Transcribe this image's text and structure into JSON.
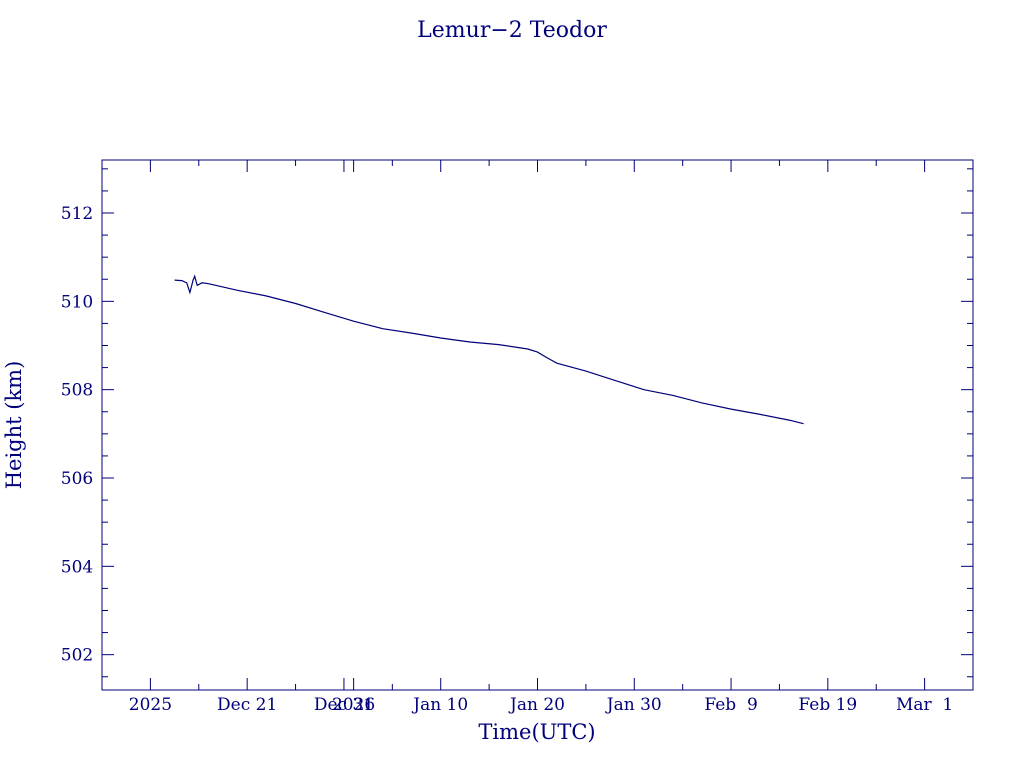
{
  "chart_data": {
    "type": "line",
    "title": "Lemur−2 Teodor",
    "xlabel": "Time(UTC)",
    "ylabel": "Height (km)",
    "x_domain": [
      "2025-12-06T00:00",
      "2026-03-06T00:00"
    ],
    "ylim": [
      501.2,
      513.2
    ],
    "x_ticks": [
      {
        "date": "2025-12-11",
        "label": "2025"
      },
      {
        "date": "2025-12-21",
        "label": "Dec 21"
      },
      {
        "date": "2025-12-31",
        "label": "Dec 31"
      },
      {
        "date": "2026-01-01",
        "label": "2026"
      },
      {
        "date": "2026-01-10",
        "label": "Jan 10"
      },
      {
        "date": "2026-01-20",
        "label": "Jan 20"
      },
      {
        "date": "2026-01-30",
        "label": "Jan 30"
      },
      {
        "date": "2026-02-09",
        "label": "Feb  9"
      },
      {
        "date": "2026-02-19",
        "label": "Feb 19"
      },
      {
        "date": "2026-03-01",
        "label": "Mar  1"
      }
    ],
    "x_minor_ticks": [
      "2025-12-16",
      "2025-12-26",
      "2026-01-05",
      "2026-01-15",
      "2026-01-25",
      "2026-02-04",
      "2026-02-14",
      "2026-02-24"
    ],
    "y_ticks": [
      502,
      504,
      506,
      508,
      510,
      512
    ],
    "y_minor_step": 0.5,
    "series": [
      {
        "color": "#00007a",
        "points": [
          [
            "2025-12-13T12:00",
            510.48
          ],
          [
            "2025-12-14T06:00",
            510.47
          ],
          [
            "2025-12-14T18:00",
            510.42
          ],
          [
            "2025-12-15T02:00",
            510.2
          ],
          [
            "2025-12-15T10:00",
            510.48
          ],
          [
            "2025-12-15T14:00",
            510.57
          ],
          [
            "2025-12-15T20:00",
            510.36
          ],
          [
            "2025-12-16T08:00",
            510.42
          ],
          [
            "2025-12-17T00:00",
            510.4
          ],
          [
            "2025-12-20T00:00",
            510.25
          ],
          [
            "2025-12-23T00:00",
            510.12
          ],
          [
            "2025-12-26T00:00",
            509.95
          ],
          [
            "2025-12-29T00:00",
            509.75
          ],
          [
            "2026-01-01T00:00",
            509.55
          ],
          [
            "2026-01-04T00:00",
            509.38
          ],
          [
            "2026-01-07T00:00",
            509.28
          ],
          [
            "2026-01-10T00:00",
            509.17
          ],
          [
            "2026-01-13T00:00",
            509.08
          ],
          [
            "2026-01-16T00:00",
            509.02
          ],
          [
            "2026-01-19T00:00",
            508.92
          ],
          [
            "2026-01-20T00:00",
            508.85
          ],
          [
            "2026-01-21T00:00",
            508.72
          ],
          [
            "2026-01-22T00:00",
            508.6
          ],
          [
            "2026-01-25T00:00",
            508.42
          ],
          [
            "2026-01-28T00:00",
            508.21
          ],
          [
            "2026-01-31T00:00",
            508.0
          ],
          [
            "2026-02-03T00:00",
            507.87
          ],
          [
            "2026-02-06T00:00",
            507.7
          ],
          [
            "2026-02-09T00:00",
            507.56
          ],
          [
            "2026-02-12T00:00",
            507.44
          ],
          [
            "2026-02-15T00:00",
            507.31
          ],
          [
            "2026-02-16T12:00",
            507.23
          ]
        ]
      }
    ],
    "grid": false
  }
}
